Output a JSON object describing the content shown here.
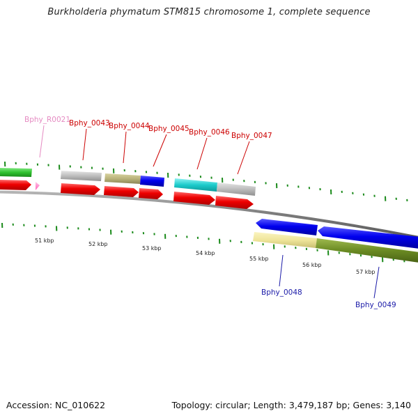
{
  "title": "Burkholderia phymatum STM815 chromosome 1, complete sequence",
  "footer": {
    "accession": "Accession: NC_010622",
    "topology": "Topology: circular; Length: 3,479,187 bp; Genes: 3,140"
  },
  "scale_labels": [
    "51 kbp",
    "52 kbp",
    "53 kbp",
    "54 kbp",
    "55 kbp",
    "56 kbp",
    "57 kbp"
  ],
  "gene_labels": [
    {
      "text": "Bphy_R0021",
      "color": "#e58bc2"
    },
    {
      "text": "Bphy_0043",
      "color": "#cc0000"
    },
    {
      "text": "Bphy_0044",
      "color": "#cc0000"
    },
    {
      "text": "Bphy_0045",
      "color": "#cc0000"
    },
    {
      "text": "Bphy_0046",
      "color": "#cc0000"
    },
    {
      "text": "Bphy_0047",
      "color": "#cc0000"
    },
    {
      "text": "Bphy_0048",
      "color": "#1a1aa8"
    },
    {
      "text": "Bphy_0049",
      "color": "#1a1aa8"
    }
  ],
  "colors": {
    "forward_cds": "#ee0000",
    "reverse_cds": "#0000ee",
    "rna": "#ff88cc",
    "backbone": "#888888",
    "ticks": "#1a8a1a"
  }
}
